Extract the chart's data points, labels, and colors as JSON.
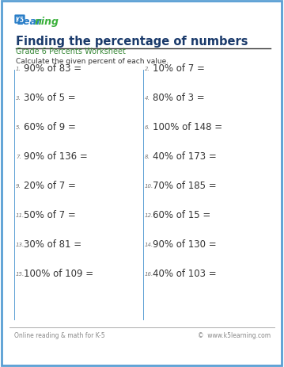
{
  "title": "Finding the percentage of numbers",
  "subtitle": "Grade 6 Percents Worksheet",
  "instruction": "Calculate the given percent of each value.",
  "background_color": "#ffffff",
  "border_color": "#5a9fd4",
  "title_color": "#1a3a6b",
  "subtitle_color": "#3a8a3a",
  "instruction_color": "#333333",
  "question_color": "#333333",
  "number_color": "#777777",
  "footer_left": "Online reading & math for K-5",
  "footer_right": "©  www.k5learning.com",
  "footer_color": "#888888",
  "logo_k5_color": "#ffffff",
  "logo_box_color": "#2a7ec8",
  "logo_learn_color": "#2a7ec8",
  "logo_ing_color": "#3ab03a",
  "questions_left": [
    {
      "num": "1.",
      "text": "90% of 83 ="
    },
    {
      "num": "3.",
      "text": "30% of 5 ="
    },
    {
      "num": "5.",
      "text": "60% of 9 ="
    },
    {
      "num": "7.",
      "text": "90% of 136 ="
    },
    {
      "num": "9.",
      "text": "20% of 7 ="
    },
    {
      "num": "11.",
      "text": "50% of 7 ="
    },
    {
      "num": "13.",
      "text": "30% of 81 ="
    },
    {
      "num": "15.",
      "text": "100% of 109 ="
    }
  ],
  "questions_right": [
    {
      "num": "2.",
      "text": "10% of 7 ="
    },
    {
      "num": "4.",
      "text": "80% of 3 ="
    },
    {
      "num": "6.",
      "text": "100% of 148 ="
    },
    {
      "num": "8.",
      "text": "40% of 173 ="
    },
    {
      "num": "10.",
      "text": "70% of 185 ="
    },
    {
      "num": "12.",
      "text": "60% of 15 ="
    },
    {
      "num": "14.",
      "text": "90% of 130 ="
    },
    {
      "num": "16.",
      "text": "40% of 103 ="
    }
  ]
}
